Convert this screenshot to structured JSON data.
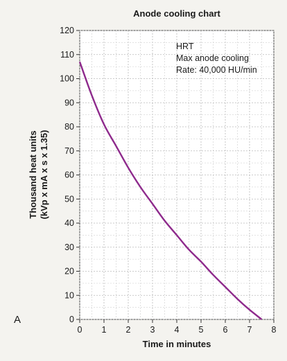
{
  "panel_label": "A",
  "chart_data": {
    "type": "line",
    "title": "Anode cooling chart",
    "xlabel": "Time in minutes",
    "ylabel_line1": "Thousand heat units",
    "ylabel_line2": "(kVp x mA x s x 1.35)",
    "xlim": [
      0,
      8
    ],
    "ylim": [
      0,
      120
    ],
    "x_ticks": [
      0,
      1,
      2,
      3,
      4,
      5,
      6,
      7,
      8
    ],
    "y_ticks": [
      0,
      10,
      20,
      30,
      40,
      50,
      60,
      70,
      80,
      90,
      100,
      110,
      120
    ],
    "grid": true,
    "annotation": [
      "HRT",
      "Max anode cooling",
      "Rate: 40,000 HU/min"
    ],
    "series": [
      {
        "color": "#8e2a8c",
        "x": [
          0,
          0.5,
          1,
          1.5,
          2,
          2.5,
          3,
          3.5,
          4,
          4.5,
          5,
          5.5,
          6,
          6.5,
          7,
          7.5
        ],
        "y": [
          107,
          93,
          81,
          72,
          63,
          55,
          48,
          41,
          35,
          29,
          24,
          18.5,
          13.5,
          8.5,
          4,
          0
        ]
      }
    ]
  }
}
